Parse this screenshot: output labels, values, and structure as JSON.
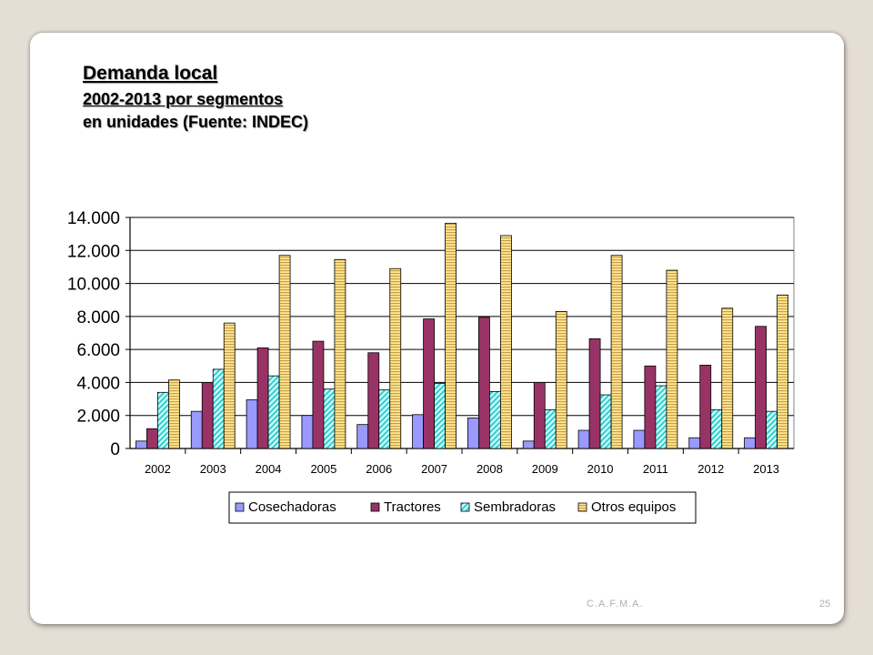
{
  "slide": {
    "title": "Demanda local",
    "subtitle": "2002-2013 por segmentos",
    "subtitle2": "en unidades (Fuente: INDEC)",
    "footer_org": "C.A.F.M.A.",
    "page_number": "25"
  },
  "chart_data": {
    "type": "bar",
    "title": "",
    "xlabel": "",
    "ylabel": "",
    "categories": [
      "2002",
      "2003",
      "2004",
      "2005",
      "2006",
      "2007",
      "2008",
      "2009",
      "2010",
      "2011",
      "2012",
      "2013"
    ],
    "ylim": [
      0,
      14000
    ],
    "yticks": [
      0,
      2000,
      4000,
      6000,
      8000,
      10000,
      12000,
      14000
    ],
    "ytick_labels": [
      "0",
      "2.000",
      "4.000",
      "6.000",
      "8.000",
      "10.000",
      "12.000",
      "14.000"
    ],
    "grid": true,
    "legend_position": "bottom",
    "series": [
      {
        "name": "Cosechadoras",
        "color": "#9999ff",
        "pattern": "solid",
        "values": [
          450,
          2250,
          2950,
          2000,
          1450,
          2050,
          1850,
          450,
          1100,
          1100,
          650,
          650
        ]
      },
      {
        "name": "Tractores",
        "color": "#993366",
        "pattern": "solid",
        "values": [
          1200,
          4000,
          6100,
          6500,
          5800,
          7850,
          7950,
          4000,
          6650,
          5000,
          5050,
          7400
        ]
      },
      {
        "name": "Sembradoras",
        "color": "#33cccc",
        "pattern": "diagonal",
        "values": [
          3400,
          4800,
          4400,
          3600,
          3550,
          3950,
          3450,
          2350,
          3250,
          3800,
          2350,
          2250
        ]
      },
      {
        "name": "Otros equipos",
        "color": "#ffcc66",
        "pattern": "horizontal",
        "values": [
          4150,
          7600,
          11700,
          11450,
          10900,
          13650,
          12900,
          8300,
          11700,
          10800,
          8500,
          9300
        ]
      }
    ]
  }
}
